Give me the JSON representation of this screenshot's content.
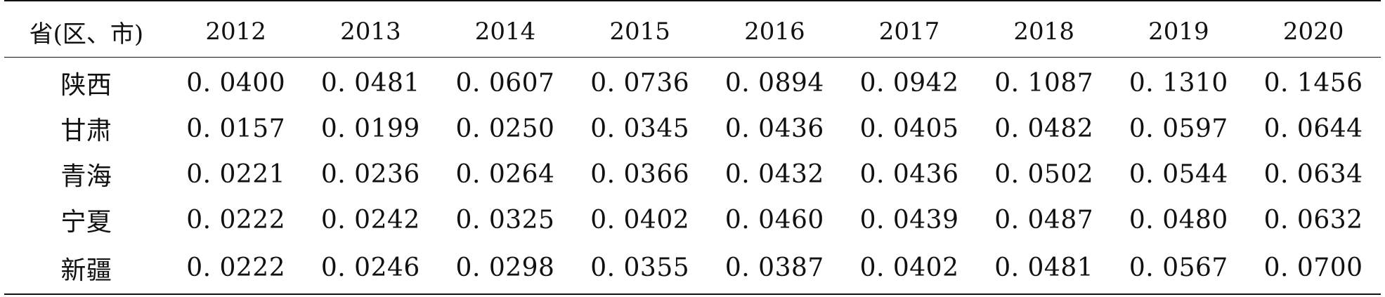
{
  "table": {
    "headers": [
      "省(区、市)",
      "2012",
      "2013",
      "2014",
      "2015",
      "2016",
      "2017",
      "2018",
      "2019",
      "2020"
    ],
    "rows": [
      {
        "region": "陕西",
        "values": [
          "0. 0400",
          "0. 0481",
          "0. 0607",
          "0. 0736",
          "0. 0894",
          "0. 0942",
          "0. 1087",
          "0. 1310",
          "0. 1456"
        ]
      },
      {
        "region": "甘肃",
        "values": [
          "0. 0157",
          "0. 0199",
          "0. 0250",
          "0. 0345",
          "0. 0436",
          "0. 0405",
          "0. 0482",
          "0. 0597",
          "0. 0644"
        ]
      },
      {
        "region": "青海",
        "values": [
          "0. 0221",
          "0. 0236",
          "0. 0264",
          "0. 0366",
          "0. 0432",
          "0. 0436",
          "0. 0502",
          "0. 0544",
          "0. 0634"
        ]
      },
      {
        "region": "宁夏",
        "values": [
          "0. 0222",
          "0. 0242",
          "0. 0325",
          "0. 0402",
          "0. 0460",
          "0. 0439",
          "0. 0487",
          "0. 0480",
          "0. 0632"
        ]
      },
      {
        "region": "新疆",
        "values": [
          "0. 0222",
          "0. 0246",
          "0. 0298",
          "0. 0355",
          "0. 0387",
          "0. 0402",
          "0. 0481",
          "0. 0567",
          "0. 0700"
        ]
      }
    ]
  }
}
